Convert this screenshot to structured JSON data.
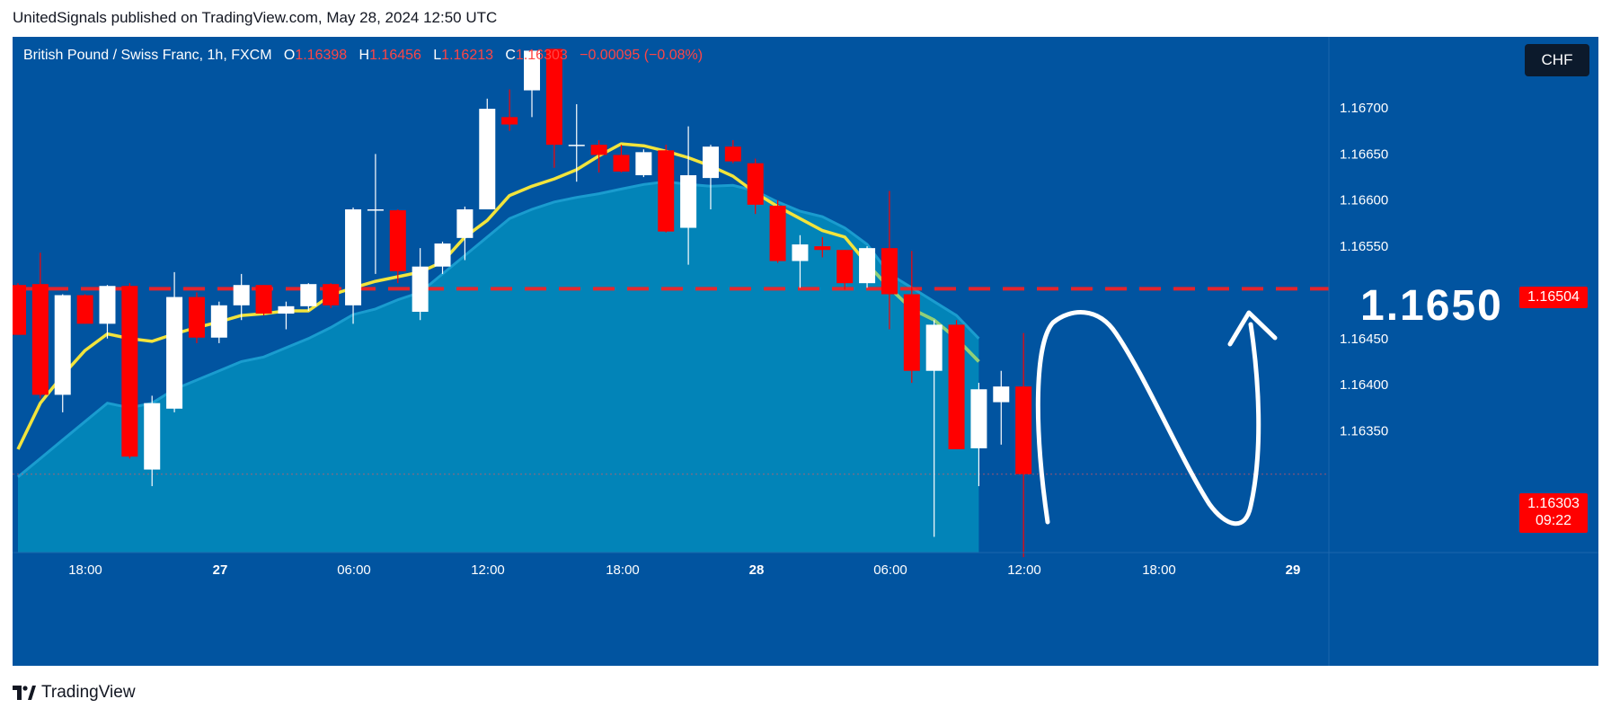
{
  "header": {
    "publish_text": "UnitedSignals published on TradingView.com, May 28, 2024 12:50 UTC"
  },
  "legend": {
    "symbol": "British Pound / Swiss Franc, 1h, FXCM",
    "o_label": "O",
    "o_value": "1.16398",
    "h_label": "H",
    "h_value": "1.16456",
    "l_label": "L",
    "l_value": "1.16213",
    "c_label": "C",
    "c_value": "1.16303",
    "change": "−0.00095 (−0.08%)"
  },
  "currency_badge": "CHF",
  "price_tags": {
    "level": "1.16504",
    "last": "1.16303",
    "countdown": "09:22"
  },
  "annotation": {
    "target_text": "1.1650"
  },
  "footer": {
    "brand": "TradingView"
  },
  "colors": {
    "background": "#0154a0",
    "up_candle": "#ffffff",
    "down_candle": "#ff0000",
    "ma_line": "#f2e43c",
    "cloud_fill": "#0284b8",
    "level_line": "#ff1f1f"
  },
  "chart_data": {
    "type": "candlestick",
    "title": "British Pound / Swiss Franc, 1h, FXCM",
    "y_ticks": [
      "1.16350",
      "1.16400",
      "1.16450",
      "1.16550",
      "1.16600",
      "1.16650",
      "1.16700"
    ],
    "x_ticks": [
      "18:00",
      "27",
      "06:00",
      "12:00",
      "18:00",
      "28",
      "06:00",
      "12:00",
      "18:00",
      "29"
    ],
    "ylim": [
      1.16218,
      1.16777
    ],
    "horizontal_level": 1.16504,
    "candles": [
      {
        "o": 1.16508,
        "h": 1.1651,
        "l": 1.16454,
        "c": 1.16454
      },
      {
        "o": 1.16509,
        "h": 1.16543,
        "l": 1.16385,
        "c": 1.16389
      },
      {
        "o": 1.16389,
        "h": 1.16498,
        "l": 1.1637,
        "c": 1.16497
      },
      {
        "o": 1.16497,
        "h": 1.16498,
        "l": 1.16466,
        "c": 1.16466
      },
      {
        "o": 1.16466,
        "h": 1.16508,
        "l": 1.1645,
        "c": 1.16507
      },
      {
        "o": 1.16507,
        "h": 1.1651,
        "l": 1.1632,
        "c": 1.16322
      },
      {
        "o": 1.16308,
        "h": 1.16388,
        "l": 1.1629,
        "c": 1.1638
      },
      {
        "o": 1.16374,
        "h": 1.16522,
        "l": 1.1637,
        "c": 1.16495
      },
      {
        "o": 1.16495,
        "h": 1.165,
        "l": 1.16445,
        "c": 1.16451
      },
      {
        "o": 1.16451,
        "h": 1.1649,
        "l": 1.16445,
        "c": 1.16486
      },
      {
        "o": 1.16486,
        "h": 1.1652,
        "l": 1.1647,
        "c": 1.16508
      },
      {
        "o": 1.16508,
        "h": 1.16508,
        "l": 1.16475,
        "c": 1.16477
      },
      {
        "o": 1.16477,
        "h": 1.1649,
        "l": 1.1646,
        "c": 1.16485
      },
      {
        "o": 1.16485,
        "h": 1.1651,
        "l": 1.1648,
        "c": 1.16509
      },
      {
        "o": 1.16509,
        "h": 1.1651,
        "l": 1.16483,
        "c": 1.16486
      },
      {
        "o": 1.16486,
        "h": 1.16592,
        "l": 1.16466,
        "c": 1.1659
      },
      {
        "o": 1.1659,
        "h": 1.1665,
        "l": 1.1652,
        "c": 1.1659
      },
      {
        "o": 1.16589,
        "h": 1.1659,
        "l": 1.1651,
        "c": 1.16523
      },
      {
        "o": 1.16479,
        "h": 1.16548,
        "l": 1.1647,
        "c": 1.16528
      },
      {
        "o": 1.16528,
        "h": 1.16555,
        "l": 1.1652,
        "c": 1.16553
      },
      {
        "o": 1.16559,
        "h": 1.16593,
        "l": 1.16535,
        "c": 1.1659
      },
      {
        "o": 1.1659,
        "h": 1.1671,
        "l": 1.1659,
        "c": 1.16699
      },
      {
        "o": 1.1669,
        "h": 1.1672,
        "l": 1.16675,
        "c": 1.16682
      },
      {
        "o": 1.16719,
        "h": 1.1676,
        "l": 1.1669,
        "c": 1.16762
      },
      {
        "o": 1.16764,
        "h": 1.16764,
        "l": 1.16635,
        "c": 1.1666
      },
      {
        "o": 1.1666,
        "h": 1.16704,
        "l": 1.1662,
        "c": 1.1666
      },
      {
        "o": 1.1666,
        "h": 1.16665,
        "l": 1.1663,
        "c": 1.16649
      },
      {
        "o": 1.16649,
        "h": 1.1666,
        "l": 1.1663,
        "c": 1.16631
      },
      {
        "o": 1.16627,
        "h": 1.16655,
        "l": 1.16625,
        "c": 1.16652
      },
      {
        "o": 1.16654,
        "h": 1.1666,
        "l": 1.16565,
        "c": 1.16566
      },
      {
        "o": 1.1657,
        "h": 1.1668,
        "l": 1.1653,
        "c": 1.16627
      },
      {
        "o": 1.16624,
        "h": 1.1666,
        "l": 1.1659,
        "c": 1.16658
      },
      {
        "o": 1.16658,
        "h": 1.16665,
        "l": 1.1664,
        "c": 1.16642
      },
      {
        "o": 1.1664,
        "h": 1.16645,
        "l": 1.16585,
        "c": 1.16595
      },
      {
        "o": 1.16594,
        "h": 1.166,
        "l": 1.16532,
        "c": 1.16534
      },
      {
        "o": 1.16534,
        "h": 1.16562,
        "l": 1.16505,
        "c": 1.16552
      },
      {
        "o": 1.1655,
        "h": 1.1656,
        "l": 1.16538,
        "c": 1.16546
      },
      {
        "o": 1.16546,
        "h": 1.16546,
        "l": 1.16503,
        "c": 1.1651
      },
      {
        "o": 1.1651,
        "h": 1.1655,
        "l": 1.16505,
        "c": 1.16548
      },
      {
        "o": 1.16548,
        "h": 1.1661,
        "l": 1.1646,
        "c": 1.16498
      },
      {
        "o": 1.16498,
        "h": 1.16545,
        "l": 1.16402,
        "c": 1.16415
      },
      {
        "o": 1.16415,
        "h": 1.1647,
        "l": 1.16235,
        "c": 1.16465
      },
      {
        "o": 1.16465,
        "h": 1.1647,
        "l": 1.1633,
        "c": 1.1633
      },
      {
        "o": 1.16331,
        "h": 1.16402,
        "l": 1.1629,
        "c": 1.16395
      },
      {
        "o": 1.16381,
        "h": 1.16415,
        "l": 1.16335,
        "c": 1.16398
      },
      {
        "o": 1.16398,
        "h": 1.16456,
        "l": 1.16213,
        "c": 1.16303
      }
    ],
    "ma_line": [
      1.1633,
      1.1638,
      1.1641,
      1.16437,
      1.16455,
      1.1645,
      1.16447,
      1.16455,
      1.16462,
      1.16468,
      1.16475,
      1.16477,
      1.1648,
      1.1648,
      1.16497,
      1.16505,
      1.16512,
      1.16517,
      1.16522,
      1.16533,
      1.1656,
      1.16578,
      1.16605,
      1.16615,
      1.16623,
      1.16633,
      1.16648,
      1.16661,
      1.16659,
      1.16653,
      1.16646,
      1.16637,
      1.16626,
      1.16608,
      1.16593,
      1.1658,
      1.16567,
      1.1656,
      1.16531,
      1.16505,
      1.16482,
      1.1647,
      1.1645,
      1.16425
    ],
    "cloud_upper": [
      1.163,
      1.1632,
      1.1634,
      1.1636,
      1.1638,
      1.16375,
      1.1638,
      1.16395,
      1.16405,
      1.16415,
      1.16425,
      1.1643,
      1.1644,
      1.1645,
      1.16462,
      1.16476,
      1.16482,
      1.16492,
      1.165,
      1.1652,
      1.1654,
      1.1656,
      1.1658,
      1.1659,
      1.16598,
      1.16603,
      1.16607,
      1.16612,
      1.16617,
      1.1662,
      1.16617,
      1.16615,
      1.16616,
      1.1661,
      1.16598,
      1.16588,
      1.16582,
      1.1657,
      1.16552,
      1.1652,
      1.16505,
      1.1649,
      1.16475,
      1.1645
    ]
  }
}
